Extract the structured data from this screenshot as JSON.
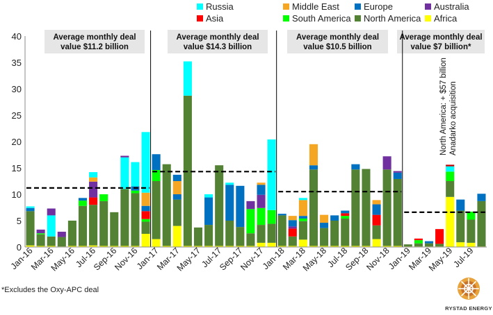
{
  "footnote": "*Excludes the Oxy-APC deal",
  "logo_text": "RYSTAD ENERGY",
  "chart_data": {
    "type": "bar",
    "stacked": true,
    "title": "",
    "xlabel": "",
    "ylabel": "",
    "ylim": [
      0,
      40
    ],
    "yticks": [
      0,
      5,
      10,
      15,
      20,
      25,
      30,
      35,
      40
    ],
    "grid": false,
    "legend_placement": "top",
    "categories": [
      "Jan-16",
      "Feb-16",
      "Mar-16",
      "Apr-16",
      "May-16",
      "Jun-16",
      "Jul-16",
      "Aug-16",
      "Sep-16",
      "Oct-16",
      "Nov-16",
      "Dec-16",
      "Jan-17",
      "Feb-17",
      "Mar-17",
      "Apr-17",
      "May-17",
      "Jun-17",
      "Jul-17",
      "Aug-17",
      "Sep-17",
      "Oct-17",
      "Nov-17",
      "Dec-17",
      "Jan-18",
      "Feb-18",
      "Mar-18",
      "Apr-18",
      "May-18",
      "Jun-18",
      "Jul-18",
      "Aug-18",
      "Sep-18",
      "Oct-18",
      "Nov-18",
      "Dec-18",
      "Jan-19",
      "Feb-19",
      "Mar-19",
      "Apr-19",
      "May-19",
      "Jun-19",
      "Jul-19",
      "Aug-19"
    ],
    "xtick_labels": [
      "Jan-16",
      "Mar-16",
      "May-16",
      "Jul-16",
      "Sep-16",
      "Nov-16",
      "Jan-17",
      "Mar-17",
      "May-17",
      "Jul-17",
      "Sep-17",
      "Nov-17",
      "Jan-18",
      "Mar-18",
      "May-18",
      "Jul-18",
      "Sep-18",
      "Nov-18",
      "Jan-19",
      "Mar-19",
      "May-19",
      "Jul-19"
    ],
    "series": [
      {
        "name": "Africa",
        "color": "#FFFF00",
        "values": [
          0.3,
          0.2,
          0.2,
          0.1,
          0.2,
          0.2,
          0.3,
          0.2,
          0.2,
          0.2,
          0.2,
          2.5,
          1.5,
          0.2,
          4.0,
          0.2,
          0.2,
          0.2,
          0.2,
          0.2,
          0.2,
          0.2,
          0.8,
          0.8,
          0.2,
          0.2,
          1.4,
          0.2,
          0.2,
          0.2,
          0.2,
          0.2,
          0.2,
          1.5,
          0.2,
          0.2,
          0.1,
          0.1,
          0.1,
          0.1,
          9.5,
          0.9,
          0.8,
          0.1
        ]
      },
      {
        "name": "North America",
        "color": "#548235",
        "values": [
          6.5,
          2.2,
          1.8,
          1.8,
          4.8,
          7.6,
          7.7,
          8.5,
          6.4,
          10.8,
          10.0,
          2.3,
          11.0,
          15.5,
          5.0,
          28.5,
          3.5,
          4.0,
          15.3,
          4.8,
          3.6,
          2.4,
          3.4,
          3.6,
          5.8,
          1.8,
          3.5,
          14.5,
          3.4,
          4.8,
          5.2,
          14.5,
          14.6,
          2.6,
          14.5,
          12.7,
          0.4,
          0.6,
          0.6,
          0.5,
          3.0,
          6.0,
          4.4,
          8.6
        ]
      },
      {
        "name": "South America",
        "color": "#00FF00",
        "values": [
          0,
          0.2,
          0,
          0,
          0,
          1.0,
          0,
          1.3,
          0,
          0,
          0.5,
          0.5,
          2.1,
          0,
          0,
          0,
          0,
          0,
          0,
          0,
          0,
          4.6,
          3.2,
          2.6,
          0,
          0,
          0.5,
          0,
          0,
          0,
          0.5,
          0,
          0,
          0,
          0,
          0,
          0,
          0.6,
          0,
          0,
          1.8,
          0,
          1.5,
          0
        ]
      },
      {
        "name": "Asia",
        "color": "#FF0000",
        "values": [
          0,
          0,
          0,
          0,
          0,
          0,
          1.4,
          0,
          0,
          0,
          0,
          1.5,
          0,
          0,
          0,
          0,
          0,
          0,
          0,
          0,
          0,
          0,
          0,
          0,
          0,
          1.5,
          0,
          0,
          0,
          0,
          0.5,
          0,
          0,
          2.0,
          0,
          0,
          0,
          0.3,
          0,
          2.8,
          0,
          0,
          0,
          0
        ]
      },
      {
        "name": "Australia",
        "color": "#7030A0",
        "values": [
          0,
          0,
          0,
          1.0,
          0,
          0,
          3.0,
          0,
          0,
          0,
          0,
          0,
          0,
          0,
          0,
          0,
          0,
          0,
          0,
          0,
          0,
          1.5,
          2.5,
          0,
          0,
          0.4,
          0,
          0,
          0,
          0,
          0,
          0,
          0,
          0,
          2.5,
          0,
          0,
          0,
          0,
          0,
          0,
          0,
          0,
          0
        ]
      },
      {
        "name": "Europe",
        "color": "#0070C0",
        "values": [
          0.6,
          0,
          0,
          0,
          0,
          0.5,
          0,
          0,
          0,
          0,
          0.8,
          1.0,
          3.0,
          0,
          1.0,
          0,
          0,
          5.2,
          0,
          6.8,
          7.8,
          0,
          1.9,
          0,
          0.3,
          1.2,
          0.5,
          0.8,
          1.0,
          1.0,
          0.5,
          1.0,
          0,
          2.0,
          0,
          1.2,
          0,
          0,
          0.4,
          0,
          0,
          2.1,
          0,
          1.4
        ]
      },
      {
        "name": "Middle East",
        "color": "#F5A623",
        "values": [
          0,
          0,
          0,
          0,
          0,
          0,
          0.8,
          0,
          0,
          0,
          0,
          2.5,
          0,
          0,
          2.5,
          0,
          0,
          0,
          0,
          0,
          0,
          0,
          0.4,
          0,
          0,
          0.8,
          3.0,
          4.0,
          1.5,
          0,
          0,
          0,
          0,
          0.8,
          0,
          0,
          0,
          0,
          0,
          0,
          0,
          0,
          0,
          0
        ]
      },
      {
        "name": "Russia",
        "color": "#00FFFF",
        "values": [
          0.3,
          0,
          4.0,
          0,
          0,
          0,
          1.0,
          0,
          0,
          6.0,
          4.6,
          11.5,
          0,
          0,
          0,
          6.5,
          0,
          0.6,
          0,
          0.4,
          0,
          0,
          0,
          13.4,
          0,
          0,
          0.4,
          0,
          0,
          0,
          0,
          0,
          0,
          0,
          0,
          0,
          0,
          0,
          0,
          0,
          1.0,
          0,
          0,
          0
        ]
      },
      {
        "name": "",
        "color": "#7030A0",
        "values": [
          0,
          0.7,
          1.3,
          0,
          0,
          0,
          0,
          0,
          0,
          0.3,
          0,
          0,
          0,
          0,
          0,
          0,
          0,
          0,
          0,
          0,
          0,
          0,
          0,
          0,
          0,
          0,
          0,
          0,
          0,
          0,
          0,
          0,
          0,
          0,
          0,
          0.3,
          0,
          0,
          0,
          0,
          0,
          0,
          0,
          0
        ]
      },
      {
        "name": "",
        "color": "#C00000",
        "values": [
          0,
          0,
          0,
          0,
          0,
          0,
          0,
          0,
          0,
          0,
          0,
          0,
          0,
          0,
          0,
          0,
          0,
          0,
          0,
          0,
          0,
          0,
          0,
          0,
          0,
          0,
          0,
          0,
          0,
          0,
          0,
          0,
          0,
          0,
          0,
          0,
          0,
          0,
          0,
          0,
          0.3,
          0,
          0,
          0
        ]
      },
      {
        "name": "",
        "color": "#0070C0",
        "values": [
          0,
          0,
          0,
          0,
          0,
          0,
          0,
          0,
          0,
          0,
          0,
          0,
          0,
          0,
          1.2,
          0,
          0,
          0,
          0,
          0,
          0,
          0,
          0,
          0,
          0,
          0,
          0,
          0,
          0,
          0,
          0,
          0,
          0,
          0,
          0,
          0,
          0,
          0,
          0,
          0,
          0,
          0,
          0,
          0
        ]
      }
    ],
    "legend_series": [
      "Russia",
      "Middle East",
      "Europe",
      "Australia",
      "Asia",
      "South America",
      "North America",
      "Africa"
    ],
    "period_dividers": [
      "Jan-17",
      "Jan-18",
      "Jan-19"
    ],
    "averages": [
      {
        "label_line1": "Average monthly deal",
        "label_line2": "value $11.2 billion",
        "value": 11.2,
        "from": "Jan-16",
        "to": "Dec-16"
      },
      {
        "label_line1": "Average monthly deal",
        "label_line2": "value $14.3 billion",
        "value": 14.3,
        "from": "Jan-17",
        "to": "Dec-17"
      },
      {
        "label_line1": "Average monthly deal",
        "label_line2": "value $10.5 billion",
        "value": 10.5,
        "from": "Jan-18",
        "to": "Dec-18"
      },
      {
        "label_line1": "Average monthly deal",
        "label_line2": "value $7 billion*",
        "value": 6.6,
        "from": "Jan-19",
        "to": "Aug-19"
      }
    ],
    "annotation": {
      "line1": "North America: + $57 billion",
      "line2": "Anadarko acquisition",
      "category": "May-19"
    }
  }
}
